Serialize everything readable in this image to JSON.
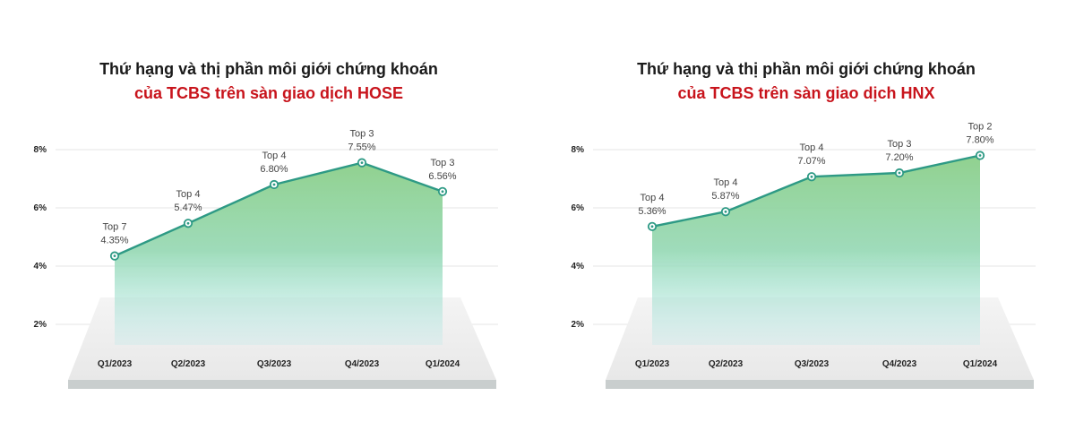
{
  "charts": [
    {
      "title_line1": "Thứ hạng và thị phần môi giới chứng khoán",
      "title_line2": "của TCBS trên sàn giao dịch HOSE"
    },
    {
      "title_line1": "Thứ hạng và thị phần môi giới chứng khoán",
      "title_line2": "của TCBS trên sàn giao dịch HNX"
    }
  ],
  "colors": {
    "title_dark": "#1a1a1a",
    "title_red": "#c8141c",
    "line": "#2e9a85",
    "area_top": "#8ccf8a",
    "area_bottom": "#a8e6e6",
    "grid": "#e6e6e6"
  },
  "chart_data": [
    {
      "type": "area",
      "title": "Thứ hạng và thị phần môi giới chứng khoán của TCBS trên sàn giao dịch HOSE",
      "categories": [
        "Q1/2023",
        "Q2/2023",
        "Q3/2023",
        "Q4/2023",
        "Q1/2024"
      ],
      "values": [
        4.35,
        5.47,
        6.8,
        7.55,
        6.56
      ],
      "value_labels": [
        "4.35%",
        "5.47%",
        "6.80%",
        "7.55%",
        "6.56%"
      ],
      "ranks": [
        "Top 7",
        "Top 4",
        "Top 4",
        "Top 3",
        "Top 3"
      ],
      "yticks": [
        "2%",
        "4%",
        "6%",
        "8%"
      ],
      "ylim": [
        0,
        8
      ],
      "grid": true
    },
    {
      "type": "area",
      "title": "Thứ hạng và thị phần môi giới chứng khoán của TCBS trên sàn giao dịch HNX",
      "categories": [
        "Q1/2023",
        "Q2/2023",
        "Q3/2023",
        "Q4/2023",
        "Q1/2024"
      ],
      "values": [
        5.36,
        5.87,
        7.07,
        7.2,
        7.8
      ],
      "value_labels": [
        "5.36%",
        "5.87%",
        "7.07%",
        "7.20%",
        "7.80%"
      ],
      "ranks": [
        "Top 4",
        "Top 4",
        "Top 4",
        "Top 3",
        "Top 2"
      ],
      "yticks": [
        "2%",
        "4%",
        "6%",
        "8%"
      ],
      "ylim": [
        0,
        8
      ],
      "grid": true
    }
  ]
}
